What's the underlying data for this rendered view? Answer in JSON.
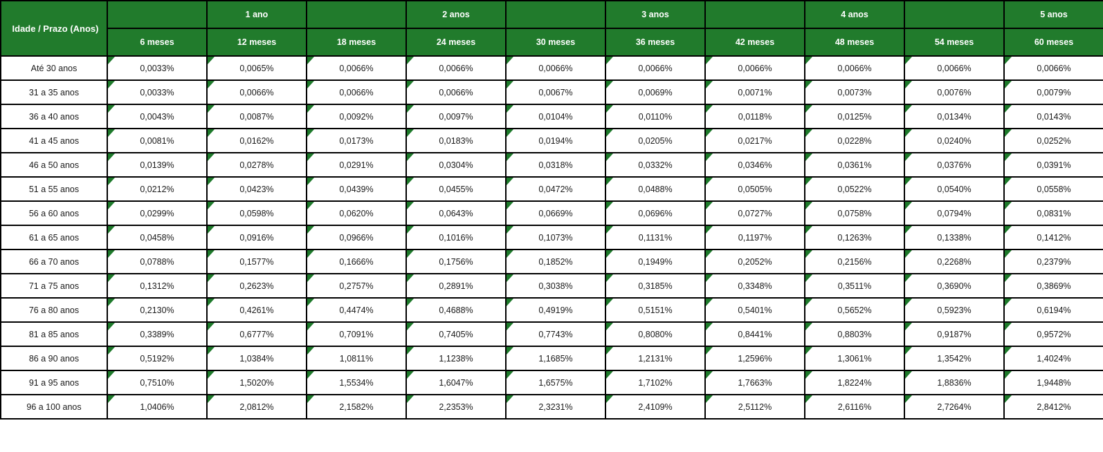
{
  "colors": {
    "header_green": "#217b2c",
    "flag_green": "#1e7a2b",
    "border": "#000000",
    "header_text": "#ffffff",
    "cell_text": "#1a1a1a"
  },
  "chart_data": {
    "type": "table",
    "corner_header": "Idade / Prazo (Anos)",
    "year_headers": [
      "",
      "1 ano",
      "",
      "2 anos",
      "",
      "3 anos",
      "",
      "4 anos",
      "",
      "5 anos"
    ],
    "month_headers": [
      "6 meses",
      "12 meses",
      "18 meses",
      "24 meses",
      "30 meses",
      "36 meses",
      "42 meses",
      "48 meses",
      "54 meses",
      "60 meses"
    ],
    "rows": [
      {
        "label": "Até 30 anos",
        "values": [
          "0,0033%",
          "0,0065%",
          "0,0066%",
          "0,0066%",
          "0,0066%",
          "0,0066%",
          "0,0066%",
          "0,0066%",
          "0,0066%",
          "0,0066%"
        ]
      },
      {
        "label": "31 a 35 anos",
        "values": [
          "0,0033%",
          "0,0066%",
          "0,0066%",
          "0,0066%",
          "0,0067%",
          "0,0069%",
          "0,0071%",
          "0,0073%",
          "0,0076%",
          "0,0079%"
        ]
      },
      {
        "label": "36 a 40 anos",
        "values": [
          "0,0043%",
          "0,0087%",
          "0,0092%",
          "0,0097%",
          "0,0104%",
          "0,0110%",
          "0,0118%",
          "0,0125%",
          "0,0134%",
          "0,0143%"
        ]
      },
      {
        "label": "41 a 45 anos",
        "values": [
          "0,0081%",
          "0,0162%",
          "0,0173%",
          "0,0183%",
          "0,0194%",
          "0,0205%",
          "0,0217%",
          "0,0228%",
          "0,0240%",
          "0,0252%"
        ]
      },
      {
        "label": "46 a 50 anos",
        "values": [
          "0,0139%",
          "0,0278%",
          "0,0291%",
          "0,0304%",
          "0,0318%",
          "0,0332%",
          "0,0346%",
          "0,0361%",
          "0,0376%",
          "0,0391%"
        ]
      },
      {
        "label": "51 a 55 anos",
        "values": [
          "0,0212%",
          "0,0423%",
          "0,0439%",
          "0,0455%",
          "0,0472%",
          "0,0488%",
          "0,0505%",
          "0,0522%",
          "0,0540%",
          "0,0558%"
        ]
      },
      {
        "label": "56 a 60 anos",
        "values": [
          "0,0299%",
          "0,0598%",
          "0,0620%",
          "0,0643%",
          "0,0669%",
          "0,0696%",
          "0,0727%",
          "0,0758%",
          "0,0794%",
          "0,0831%"
        ]
      },
      {
        "label": "61 a 65 anos",
        "values": [
          "0,0458%",
          "0,0916%",
          "0,0966%",
          "0,1016%",
          "0,1073%",
          "0,1131%",
          "0,1197%",
          "0,1263%",
          "0,1338%",
          "0,1412%"
        ]
      },
      {
        "label": "66 a 70 anos",
        "values": [
          "0,0788%",
          "0,1577%",
          "0,1666%",
          "0,1756%",
          "0,1852%",
          "0,1949%",
          "0,2052%",
          "0,2156%",
          "0,2268%",
          "0,2379%"
        ]
      },
      {
        "label": "71 a 75 anos",
        "values": [
          "0,1312%",
          "0,2623%",
          "0,2757%",
          "0,2891%",
          "0,3038%",
          "0,3185%",
          "0,3348%",
          "0,3511%",
          "0,3690%",
          "0,3869%"
        ]
      },
      {
        "label": "76 a 80 anos",
        "values": [
          "0,2130%",
          "0,4261%",
          "0,4474%",
          "0,4688%",
          "0,4919%",
          "0,5151%",
          "0,5401%",
          "0,5652%",
          "0,5923%",
          "0,6194%"
        ]
      },
      {
        "label": "81 a 85 anos",
        "values": [
          "0,3389%",
          "0,6777%",
          "0,7091%",
          "0,7405%",
          "0,7743%",
          "0,8080%",
          "0,8441%",
          "0,8803%",
          "0,9187%",
          "0,9572%"
        ]
      },
      {
        "label": "86 a 90 anos",
        "values": [
          "0,5192%",
          "1,0384%",
          "1,0811%",
          "1,1238%",
          "1,1685%",
          "1,2131%",
          "1,2596%",
          "1,3061%",
          "1,3542%",
          "1,4024%"
        ]
      },
      {
        "label": "91 a 95 anos",
        "values": [
          "0,7510%",
          "1,5020%",
          "1,5534%",
          "1,6047%",
          "1,6575%",
          "1,7102%",
          "1,7663%",
          "1,8224%",
          "1,8836%",
          "1,9448%"
        ]
      },
      {
        "label": "96 a 100 anos",
        "values": [
          "1,0406%",
          "2,0812%",
          "2,1582%",
          "2,2353%",
          "2,3231%",
          "2,4109%",
          "2,5112%",
          "2,6116%",
          "2,7264%",
          "2,8412%"
        ]
      }
    ]
  }
}
